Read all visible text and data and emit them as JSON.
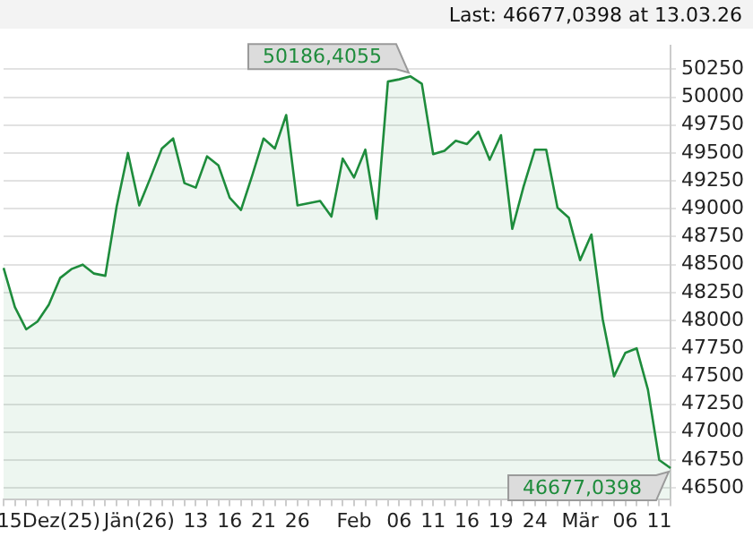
{
  "chart_data": {
    "type": "area",
    "categories": [
      null,
      null,
      null,
      null,
      "15Dez(25)",
      null,
      null,
      null,
      null,
      null,
      null,
      null,
      "Jän(26)",
      null,
      null,
      null,
      null,
      "13",
      null,
      null,
      "16",
      null,
      null,
      "21",
      null,
      null,
      "26",
      null,
      null,
      null,
      null,
      "Feb",
      null,
      null,
      null,
      "06",
      null,
      null,
      "11",
      null,
      null,
      "16",
      null,
      null,
      "19",
      null,
      null,
      "24",
      null,
      null,
      null,
      "Mär",
      null,
      null,
      null,
      "06",
      null,
      null,
      "11",
      null
    ],
    "series": [
      {
        "color": "#1e8c3c",
        "values": [
          48470,
          48120,
          47920,
          47990,
          48140,
          48380,
          48460,
          48500,
          48420,
          48400,
          49020,
          49500,
          49030,
          49280,
          49540,
          49630,
          49230,
          49190,
          49470,
          49390,
          49100,
          48990,
          49300,
          49630,
          49540,
          49840,
          49030,
          49050,
          49070,
          48930,
          49450,
          49280,
          49530,
          48910,
          50140,
          50160,
          50186.4055,
          50120,
          49490,
          49520,
          49610,
          49580,
          49690,
          49440,
          49660,
          48820,
          49200,
          49530,
          49530,
          49010,
          48920,
          48540,
          48770,
          48010,
          47500,
          47710,
          47750,
          47380,
          46750,
          46677.0398
        ]
      }
    ],
    "ylim": [
      46400,
      50460
    ],
    "yticks": [
      46500,
      46750,
      47000,
      47250,
      47500,
      47750,
      48000,
      48250,
      48500,
      48750,
      49000,
      49250,
      49500,
      49750,
      50000,
      50250
    ],
    "grid": "y",
    "annotations": [
      "Last: 46677,0398 at 13.03.26",
      "50186,4055",
      "46677,0398"
    ]
  }
}
